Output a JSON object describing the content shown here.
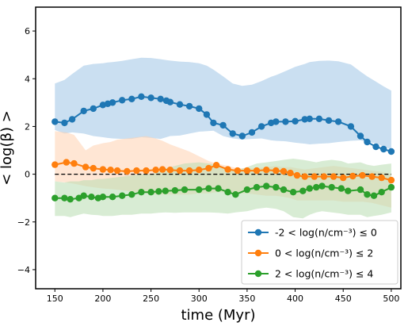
{
  "chart_data": {
    "type": "line",
    "xlabel": "time (Myr)",
    "ylabel": "< log(β) >",
    "xlim": [
      130,
      510
    ],
    "ylim": [
      -4.8,
      7.0
    ],
    "xticks": [
      150,
      200,
      250,
      300,
      350,
      400,
      450,
      500
    ],
    "yticks": [
      -4,
      -2,
      0,
      2,
      4,
      6
    ],
    "grid": false,
    "legend_position": "lower-right",
    "reference_line": {
      "y": 0,
      "style": "dashed",
      "color": "#000000"
    },
    "series": [
      {
        "name": "-2 < log(n/cm⁻³) ≤  0",
        "color": "#1f77b4",
        "band_color": "#9ec5e6",
        "x": [
          150,
          160,
          168,
          180,
          190,
          200,
          205,
          210,
          220,
          230,
          240,
          250,
          260,
          266,
          270,
          280,
          290,
          300,
          308,
          315,
          325,
          335,
          345,
          355,
          365,
          375,
          380,
          390,
          400,
          410,
          415,
          425,
          435,
          445,
          458,
          468,
          475,
          484,
          492,
          500
        ],
        "values": [
          2.2,
          2.15,
          2.3,
          2.65,
          2.75,
          2.9,
          2.95,
          3.0,
          3.1,
          3.15,
          3.25,
          3.2,
          3.15,
          3.08,
          3.02,
          2.92,
          2.85,
          2.75,
          2.5,
          2.15,
          2.05,
          1.7,
          1.6,
          1.75,
          2.0,
          2.15,
          2.2,
          2.2,
          2.22,
          2.3,
          2.32,
          2.32,
          2.25,
          2.2,
          2.0,
          1.6,
          1.35,
          1.15,
          1.05,
          0.95
        ],
        "upper": [
          3.8,
          3.95,
          4.2,
          4.55,
          4.62,
          4.65,
          4.68,
          4.7,
          4.75,
          4.82,
          4.88,
          4.87,
          4.82,
          4.78,
          4.76,
          4.72,
          4.7,
          4.65,
          4.55,
          4.38,
          4.1,
          3.8,
          3.7,
          3.75,
          3.9,
          4.08,
          4.15,
          4.32,
          4.5,
          4.62,
          4.7,
          4.75,
          4.76,
          4.73,
          4.6,
          4.3,
          4.1,
          3.88,
          3.68,
          3.5
        ],
        "lower": [
          1.85,
          1.7,
          1.75,
          1.7,
          1.6,
          1.55,
          1.52,
          1.5,
          1.48,
          1.48,
          1.55,
          1.52,
          1.48,
          1.55,
          1.6,
          1.62,
          1.7,
          1.78,
          1.8,
          1.82,
          1.6,
          1.5,
          1.45,
          1.48,
          1.5,
          1.42,
          1.4,
          1.38,
          1.32,
          1.28,
          1.25,
          1.28,
          1.3,
          1.35,
          1.4,
          1.42,
          1.35,
          1.3,
          1.15,
          1.05
        ]
      },
      {
        "name": "0 < log(n/cm⁻³) ≤  2",
        "color": "#ff7f0e",
        "band_color": "#ffd2b0",
        "x": [
          150,
          162,
          170,
          182,
          190,
          200,
          208,
          215,
          225,
          235,
          245,
          255,
          262,
          270,
          280,
          290,
          300,
          310,
          318,
          330,
          340,
          350,
          360,
          370,
          380,
          388,
          395,
          402,
          410,
          420,
          430,
          440,
          450,
          460,
          470,
          480,
          490,
          500
        ],
        "values": [
          0.4,
          0.5,
          0.45,
          0.3,
          0.25,
          0.2,
          0.18,
          0.15,
          0.12,
          0.15,
          0.15,
          0.18,
          0.2,
          0.18,
          0.15,
          0.15,
          0.18,
          0.25,
          0.38,
          0.2,
          0.15,
          0.15,
          0.15,
          0.18,
          0.15,
          0.12,
          0.05,
          -0.05,
          -0.1,
          -0.1,
          -0.1,
          -0.1,
          -0.15,
          -0.08,
          -0.05,
          -0.1,
          -0.15,
          -0.25
        ],
        "upper": [
          1.8,
          1.75,
          1.65,
          1.0,
          1.2,
          1.3,
          1.35,
          1.45,
          1.5,
          1.55,
          1.6,
          1.5,
          1.4,
          1.25,
          1.1,
          0.95,
          0.75,
          0.55,
          0.45,
          0.35,
          0.25,
          0.25,
          0.25,
          0.3,
          0.35,
          0.3,
          0.3,
          0.25,
          0.2,
          0.25,
          0.3,
          0.35,
          0.3,
          0.25,
          0.2,
          0.15,
          0.1,
          0.0
        ],
        "lower": [
          -0.3,
          -0.35,
          -0.4,
          -0.5,
          -0.55,
          -0.6,
          -0.62,
          -0.65,
          -0.7,
          -0.75,
          -0.8,
          -0.85,
          -0.85,
          -0.85,
          -0.85,
          -0.85,
          -0.8,
          -0.8,
          -0.75,
          -0.75,
          -0.8,
          -0.8,
          -0.85,
          -0.9,
          -0.9,
          -0.95,
          -1.0,
          -1.1,
          -1.1,
          -1.1,
          -1.1,
          -1.1,
          -1.15,
          -1.15,
          -1.15,
          -1.2,
          -1.3,
          -1.4
        ]
      },
      {
        "name": "2 < log(n/cm⁻³) ≤  4",
        "color": "#2ca02c",
        "band_color": "#b8dcb0",
        "x": [
          150,
          160,
          166,
          175,
          180,
          188,
          195,
          200,
          210,
          220,
          230,
          240,
          250,
          258,
          265,
          275,
          285,
          300,
          310,
          320,
          330,
          338,
          350,
          360,
          370,
          380,
          388,
          398,
          408,
          415,
          422,
          428,
          438,
          448,
          455,
          468,
          475,
          482,
          490,
          500
        ],
        "values": [
          -1.0,
          -1.0,
          -1.05,
          -1.0,
          -0.9,
          -0.95,
          -1.0,
          -0.95,
          -0.95,
          -0.9,
          -0.85,
          -0.75,
          -0.75,
          -0.72,
          -0.7,
          -0.68,
          -0.65,
          -0.65,
          -0.6,
          -0.6,
          -0.75,
          -0.85,
          -0.65,
          -0.55,
          -0.5,
          -0.55,
          -0.65,
          -0.75,
          -0.7,
          -0.6,
          -0.55,
          -0.5,
          -0.55,
          -0.6,
          -0.7,
          -0.65,
          -0.85,
          -0.9,
          -0.75,
          -0.55
        ],
        "upper": [
          -0.3,
          -0.35,
          -0.3,
          -0.3,
          -0.25,
          -0.25,
          -0.2,
          -0.2,
          -0.15,
          -0.1,
          -0.05,
          0.0,
          0.0,
          0.1,
          0.25,
          0.35,
          0.45,
          0.5,
          0.45,
          0.4,
          0.2,
          0.15,
          0.3,
          0.45,
          0.5,
          0.55,
          0.6,
          0.65,
          0.6,
          0.55,
          0.5,
          0.55,
          0.6,
          0.55,
          0.45,
          0.5,
          0.4,
          0.35,
          0.4,
          0.45
        ],
        "lower": [
          -1.75,
          -1.75,
          -1.8,
          -1.7,
          -1.65,
          -1.7,
          -1.72,
          -1.75,
          -1.75,
          -1.7,
          -1.7,
          -1.65,
          -1.65,
          -1.62,
          -1.6,
          -1.62,
          -1.6,
          -1.6,
          -1.6,
          -1.62,
          -1.65,
          -1.6,
          -1.55,
          -1.45,
          -1.4,
          -1.45,
          -1.55,
          -1.8,
          -1.85,
          -1.7,
          -1.6,
          -1.55,
          -1.6,
          -1.65,
          -1.7,
          -1.7,
          -1.8,
          -1.75,
          -1.7,
          -1.6
        ]
      }
    ]
  }
}
